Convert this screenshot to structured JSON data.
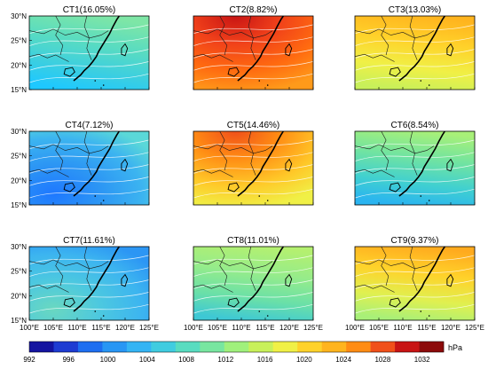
{
  "panels": [
    {
      "title": "CT1(16.05%)",
      "palette": [
        "#1ec8ff",
        "#3ccfe0",
        "#5adcc0",
        "#7ee6a6"
      ],
      "gradient": "cool-bottom"
    },
    {
      "title": "CT2(8.82%)",
      "palette": [
        "#ff9a1a",
        "#ff6a10",
        "#f0401a",
        "#c81414"
      ],
      "gradient": "hot-top-left"
    },
    {
      "title": "CT3(13.03%)",
      "palette": [
        "#c8f05a",
        "#f0f046",
        "#ffd22a",
        "#ffb41e"
      ],
      "gradient": "warm-top"
    },
    {
      "title": "CT4(7.12%)",
      "palette": [
        "#5ad8d8",
        "#3cb4f0",
        "#2c96f4",
        "#1e78ff"
      ],
      "gradient": "cool-south"
    },
    {
      "title": "CT5(14.46%)",
      "palette": [
        "#f0f046",
        "#ffc828",
        "#ff8c14",
        "#f0501a"
      ],
      "gradient": "hot-top-left"
    },
    {
      "title": "CT6(8.54%)",
      "palette": [
        "#2ab4f0",
        "#40d0d0",
        "#72e4a0",
        "#a8f078"
      ],
      "gradient": "warm-top"
    },
    {
      "title": "CT7(11.61%)",
      "palette": [
        "#2c96f4",
        "#3cb4f0",
        "#4cc8e0",
        "#6ad8c0"
      ],
      "gradient": "cool-south"
    },
    {
      "title": "CT8(11.01%)",
      "palette": [
        "#3ec8d4",
        "#6ae0a8",
        "#96ec8a",
        "#b4f070"
      ],
      "gradient": "warm-top"
    },
    {
      "title": "CT9(9.37%)",
      "palette": [
        "#a8f078",
        "#e0f050",
        "#ffd22a",
        "#ffaa1e"
      ],
      "gradient": "warm-top"
    }
  ],
  "lat_labels": [
    "30°N",
    "25°N",
    "20°N",
    "15°N"
  ],
  "lon_labels": [
    "100°E",
    "105°E",
    "110°E",
    "115°E",
    "120°E",
    "125°E"
  ],
  "colorbar": {
    "unit": "hPa",
    "tick_labels": [
      "992",
      "996",
      "1000",
      "1004",
      "1008",
      "1012",
      "1016",
      "1020",
      "1024",
      "1028",
      "1032"
    ],
    "colors": [
      "#1414a0",
      "#1e3cd2",
      "#1e6ef0",
      "#2896f4",
      "#34b4f4",
      "#40cce0",
      "#58dcc0",
      "#78e6a0",
      "#a0f07c",
      "#c8f05a",
      "#f0f046",
      "#ffd22a",
      "#ffb41e",
      "#ff8c14",
      "#f0501a",
      "#c81414",
      "#8c0a0a"
    ]
  }
}
